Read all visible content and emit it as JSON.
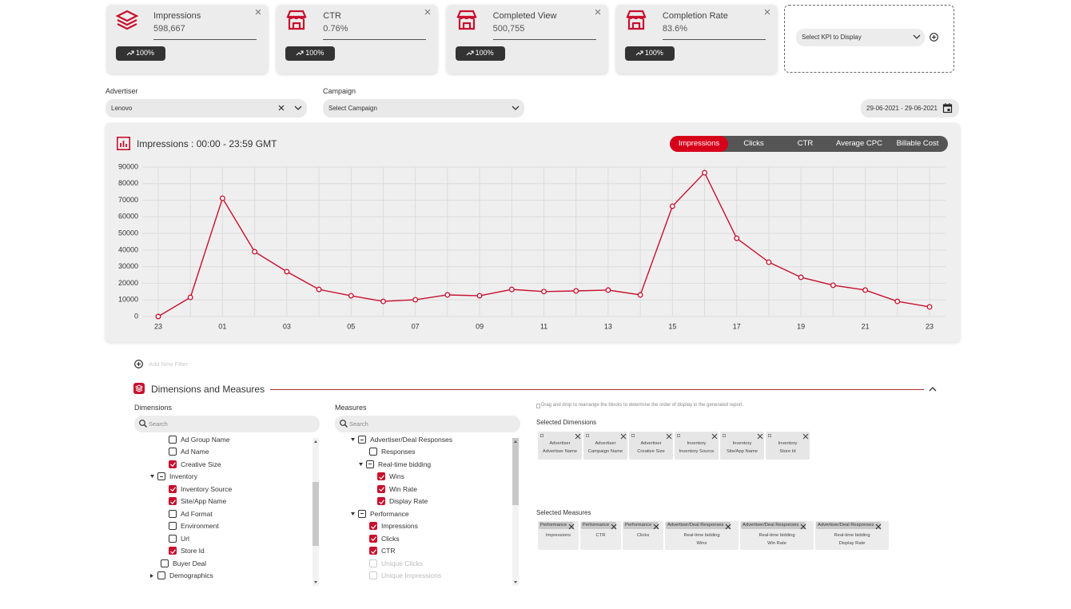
{
  "kpi_cards": [
    {
      "title": "Impressions",
      "value": "598,667",
      "change": "100%"
    },
    {
      "title": "CTR",
      "value": "0.76%",
      "change": "100%"
    },
    {
      "title": "Completed View",
      "value": "500,755",
      "change": "100%"
    },
    {
      "title": "Completion Rate",
      "value": "83.6%",
      "change": "100%"
    }
  ],
  "kpi_selector": {
    "placeholder": "Select KPI to Display"
  },
  "filters": {
    "advertiser": {
      "label": "Advertiser",
      "value": "Lenovo"
    },
    "campaign": {
      "label": "Campaign",
      "value": "Select Campaign"
    },
    "date_range": "29-06-2021 - 29-06-2021"
  },
  "chart": {
    "type": "line",
    "title": "Impressions : 00:00 - 23:59 GMT",
    "tabs": [
      {
        "label": "Impressions",
        "active": true
      },
      {
        "label": "Clicks",
        "active": false
      },
      {
        "label": "CTR",
        "active": false
      },
      {
        "label": "Average CPC",
        "active": false
      },
      {
        "label": "Billable Cost",
        "active": false
      }
    ],
    "categories": [
      "23",
      null,
      "01",
      null,
      "03",
      null,
      "05",
      null,
      "07",
      null,
      "09",
      null,
      "11",
      null,
      "13",
      null,
      "15",
      null,
      "17",
      null,
      "19",
      null,
      "21",
      null,
      "23"
    ],
    "values": [
      0,
      11500,
      71200,
      39000,
      27000,
      16300,
      12500,
      9100,
      10100,
      13000,
      12500,
      16300,
      15000,
      15400,
      15900,
      13000,
      66400,
      86600,
      47100,
      32700,
      23600,
      18800,
      15900,
      9100,
      5800
    ],
    "color": "#c8102e",
    "ylim": [
      0,
      90000
    ],
    "yticks": [
      0,
      10000,
      20000,
      30000,
      40000,
      50000,
      60000,
      70000,
      80000,
      90000
    ],
    "grid": true
  },
  "add_filter": "Add New Filter",
  "section_title": "Dimensions and Measures",
  "dimensions": {
    "label": "Dimensions",
    "search": "Search",
    "items": [
      {
        "label": "Ad Group Name",
        "level": 2,
        "state": "unchecked"
      },
      {
        "label": "Ad Name",
        "level": 2,
        "state": "unchecked"
      },
      {
        "label": "Creative Size",
        "level": 2,
        "state": "checked"
      },
      {
        "label": "Inventory",
        "level": 1,
        "state": "partial",
        "expand": "open"
      },
      {
        "label": "Inventory Source",
        "level": 2,
        "state": "checked"
      },
      {
        "label": "Site/App Name",
        "level": 2,
        "state": "checked"
      },
      {
        "label": "Ad Format",
        "level": 2,
        "state": "unchecked"
      },
      {
        "label": "Environment",
        "level": 2,
        "state": "unchecked"
      },
      {
        "label": "Url",
        "level": 2,
        "state": "unchecked"
      },
      {
        "label": "Store Id",
        "level": 2,
        "state": "checked"
      },
      {
        "label": "Buyer Deal",
        "level": 1,
        "state": "unchecked"
      },
      {
        "label": "Demographics",
        "level": 1,
        "state": "unchecked",
        "expand": "closed"
      }
    ]
  },
  "measures": {
    "label": "Measures",
    "search": "Search",
    "items": [
      {
        "label": "Advertiser/Deal Responses",
        "level": 1,
        "state": "partial",
        "expand": "open"
      },
      {
        "label": "Responses",
        "level": 2,
        "state": "unchecked"
      },
      {
        "label": "Real-time bidding",
        "level": 2,
        "state": "partial",
        "expand": "open"
      },
      {
        "label": "Wins",
        "level": 3,
        "state": "checked"
      },
      {
        "label": "Win Rate",
        "level": 3,
        "state": "checked"
      },
      {
        "label": "Display Rate",
        "level": 3,
        "state": "checked"
      },
      {
        "label": "Performance",
        "level": 1,
        "state": "partial",
        "expand": "open"
      },
      {
        "label": "Impressions",
        "level": 2,
        "state": "checked"
      },
      {
        "label": "Clicks",
        "level": 2,
        "state": "checked"
      },
      {
        "label": "CTR",
        "level": 2,
        "state": "checked"
      },
      {
        "label": "Unique Clicks",
        "level": 2,
        "state": "disabled"
      },
      {
        "label": "Unique Impressions",
        "level": 2,
        "state": "disabled"
      }
    ]
  },
  "hint": "Drag and drop to rearrange the blocks to determine the order of display in the generated report.",
  "selected_dimensions": {
    "label": "Selected Dimensions",
    "chips": [
      {
        "group": "Advertiser",
        "name": "Advertiser Name"
      },
      {
        "group": "Advertiser",
        "name": "Campaign Name"
      },
      {
        "group": "Advertiser",
        "name": "Creative Size"
      },
      {
        "group": "Inventory",
        "name": "Inventory Source"
      },
      {
        "group": "Inventory",
        "name": "Site/App Name"
      },
      {
        "group": "Inventory",
        "name": "Store Id"
      }
    ]
  },
  "selected_measures": {
    "label": "Selected Measures",
    "chips": [
      {
        "tag": "Performance",
        "name": "Impressions"
      },
      {
        "tag": "Performance",
        "name": "CTR"
      },
      {
        "tag": "Performance",
        "name": "Clicks"
      },
      {
        "tag": "Advertiser/Deal Responses",
        "group": "Real-time bidding",
        "name": "Wins"
      },
      {
        "tag": "Advertiser/Deal Responses",
        "group": "Real-time bidding",
        "name": "Win Rate"
      },
      {
        "tag": "Advertiser/Deal Responses",
        "group": "Real-time bidding",
        "name": "Display Rate"
      }
    ]
  }
}
